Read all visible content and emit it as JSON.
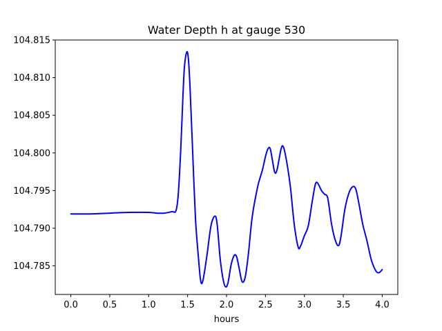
{
  "chart_data": {
    "type": "line",
    "title": "Water Depth h at gauge 530",
    "xlabel": "hours",
    "ylabel": "",
    "xlim": [
      -0.2,
      4.2
    ],
    "ylim": [
      104.7812,
      104.815
    ],
    "x_ticks": [
      0.0,
      0.5,
      1.0,
      1.5,
      2.0,
      2.5,
      3.0,
      3.5,
      4.0
    ],
    "x_tick_labels": [
      "0.0",
      "0.5",
      "1.0",
      "1.5",
      "2.0",
      "2.5",
      "3.0",
      "3.5",
      "4.0"
    ],
    "y_ticks": [
      104.785,
      104.79,
      104.795,
      104.8,
      104.805,
      104.81,
      104.815
    ],
    "y_tick_labels": [
      "104.785",
      "104.790",
      "104.795",
      "104.800",
      "104.805",
      "104.810",
      "104.815"
    ],
    "grid": false,
    "legend": "none",
    "series": [
      {
        "color": "#0000ff",
        "x": [
          0.0,
          0.25,
          0.5,
          0.75,
          1.0,
          1.1,
          1.2,
          1.3,
          1.35,
          1.38,
          1.41,
          1.44,
          1.46,
          1.49,
          1.51,
          1.53,
          1.56,
          1.6,
          1.64,
          1.67,
          1.7,
          1.75,
          1.8,
          1.85,
          1.88,
          1.92,
          1.96,
          1.99,
          2.02,
          2.06,
          2.1,
          2.13,
          2.16,
          2.2,
          2.24,
          2.28,
          2.33,
          2.4,
          2.46,
          2.5,
          2.53,
          2.56,
          2.59,
          2.62,
          2.65,
          2.7,
          2.73,
          2.77,
          2.82,
          2.87,
          2.92,
          2.95,
          3.0,
          3.05,
          3.1,
          3.14,
          3.17,
          3.22,
          3.26,
          3.3,
          3.35,
          3.4,
          3.44,
          3.47,
          3.52,
          3.57,
          3.62,
          3.66,
          3.7,
          3.75,
          3.8,
          3.86,
          3.92,
          3.96,
          4.0
        ],
        "values": [
          104.7919,
          104.7919,
          104.792,
          104.7921,
          104.7921,
          104.792,
          104.792,
          104.7922,
          104.7923,
          104.7945,
          104.8,
          104.8075,
          104.8115,
          104.8134,
          104.8125,
          104.809,
          104.8015,
          104.7915,
          104.786,
          104.7829,
          104.7832,
          104.7865,
          104.7903,
          104.7916,
          104.7905,
          104.7858,
          104.783,
          104.7822,
          104.7828,
          104.7852,
          104.7864,
          104.7862,
          104.7848,
          104.7829,
          104.7835,
          104.7865,
          104.7915,
          104.7955,
          104.7977,
          104.7995,
          104.8005,
          104.8006,
          104.799,
          104.7974,
          104.7978,
          104.8005,
          104.8008,
          104.799,
          104.7955,
          104.7905,
          104.7875,
          104.7876,
          104.789,
          104.7903,
          104.7935,
          104.7958,
          104.796,
          104.795,
          104.7945,
          104.794,
          104.7905,
          104.7883,
          104.7877,
          104.7889,
          104.7925,
          104.7946,
          104.7955,
          104.7952,
          104.7933,
          104.7905,
          104.7885,
          104.7858,
          104.7843,
          104.7841,
          104.7845
        ]
      }
    ]
  }
}
